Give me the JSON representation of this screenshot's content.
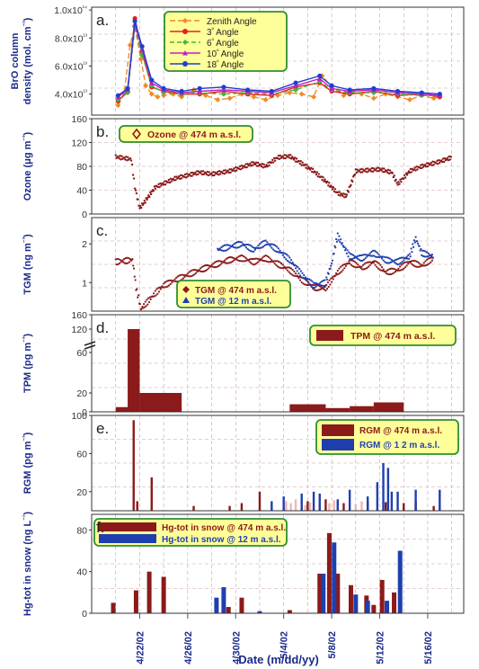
{
  "figure": {
    "x_axis_label": "Date (m/dd/yy)",
    "x_ticks": [
      "4/22/02",
      "4/26/02",
      "4/30/02",
      "5/4/02",
      "5/8/02",
      "5/12/02",
      "5/16/02"
    ],
    "colors": {
      "navy": "#1a2a8c",
      "maroon": "#8b1a1a",
      "blue": "#1f3fae",
      "legend_fill": "#ffff99",
      "legend_border": "#2f8f2f",
      "grid": "#c9a0a0"
    }
  },
  "chart_data": [
    {
      "panel": "a.",
      "type": "line",
      "ylabel": [
        "BrO column",
        "density (mol. cm⁻²)"
      ],
      "yticks": [
        "1.0x10¹⁴",
        "8.0x10¹³",
        "6.0x10¹³",
        "4.0x10¹³"
      ],
      "yunit": "10^13 mol cm^-2",
      "ylim": [
        2.5,
        10.2
      ],
      "legend": [
        "Zenith Angle",
        "3º Angle",
        "6º Angle",
        "10º Angle",
        "18º Angle"
      ],
      "series": [
        {
          "name": "Zenith Angle",
          "color": "#f08a24",
          "marker": "diamond",
          "dash": "6,3",
          "x": [
            19.2,
            19.7,
            20.2,
            20.6,
            21.1,
            21.5,
            22.0,
            22.5,
            23.0,
            23.8,
            24.5,
            25.5,
            26.5,
            27.5,
            28.5,
            29.5,
            30.5,
            31.5,
            32.5,
            33.5,
            34.5,
            35.5,
            36.2,
            37.0,
            38.0,
            38.5,
            39.5,
            40.5,
            41.5,
            42.5,
            43.5,
            44.5,
            45.5,
            46.0
          ],
          "y": [
            3.2,
            4.0,
            7.5,
            8.8,
            6.5,
            4.6,
            4.0,
            3.8,
            3.9,
            4.0,
            3.8,
            4.3,
            3.9,
            3.6,
            3.7,
            4.0,
            3.8,
            3.6,
            3.9,
            4.1,
            4.0,
            3.8,
            5.3,
            4.5,
            3.9,
            4.2,
            4.0,
            3.7,
            4.0,
            3.8,
            3.6,
            3.9,
            3.7,
            3.8
          ]
        },
        {
          "name": "3º Angle",
          "color": "#e82020",
          "marker": "circle",
          "dash": "",
          "x": [
            19.2,
            20.0,
            20.6,
            21.2,
            22.0,
            23.0,
            24.5,
            26.0,
            28.0,
            30.0,
            32.0,
            34.0,
            36.0,
            37.0,
            38.5,
            40.5,
            42.5,
            44.5,
            46.0
          ],
          "y": [
            3.5,
            4.2,
            9.4,
            7.0,
            4.5,
            4.2,
            4.0,
            4.0,
            4.2,
            4.0,
            3.9,
            4.5,
            4.8,
            4.2,
            4.0,
            4.2,
            3.9,
            4.0,
            3.8
          ]
        },
        {
          "name": "6º Angle",
          "color": "#3ab83a",
          "marker": "diamond",
          "dash": "5,3",
          "x": [
            19.2,
            20.0,
            20.6,
            21.2,
            22.0,
            23.0,
            24.5,
            26.0,
            28.0,
            30.0,
            32.0,
            34.0,
            36.0,
            37.0,
            38.5,
            40.5,
            42.5,
            44.5,
            46.0
          ],
          "y": [
            3.6,
            4.1,
            8.8,
            6.8,
            4.6,
            4.1,
            4.0,
            4.1,
            4.0,
            4.1,
            4.0,
            4.3,
            4.9,
            4.3,
            4.1,
            4.1,
            4.0,
            3.9,
            3.9
          ]
        },
        {
          "name": "10º Angle",
          "color": "#c020c0",
          "marker": "triangle",
          "dash": "",
          "x": [
            19.2,
            20.0,
            20.6,
            21.2,
            22.0,
            23.0,
            24.5,
            26.0,
            28.0,
            30.0,
            32.0,
            34.0,
            36.0,
            37.0,
            38.5,
            40.5,
            42.5,
            44.5,
            46.0
          ],
          "y": [
            3.8,
            4.3,
            9.0,
            7.2,
            4.8,
            4.3,
            4.1,
            4.2,
            4.3,
            4.2,
            4.1,
            4.6,
            5.1,
            4.4,
            4.2,
            4.3,
            4.1,
            4.0,
            3.9
          ]
        },
        {
          "name": "18º Angle",
          "color": "#1f3fcf",
          "marker": "circle",
          "dash": "",
          "x": [
            19.2,
            20.0,
            20.6,
            21.2,
            22.0,
            23.0,
            24.5,
            26.0,
            28.0,
            30.0,
            32.0,
            34.0,
            36.0,
            37.0,
            38.5,
            40.5,
            42.5,
            44.5,
            46.0
          ],
          "y": [
            3.9,
            4.4,
            9.2,
            7.4,
            5.0,
            4.4,
            4.2,
            4.4,
            4.5,
            4.3,
            4.2,
            4.8,
            5.3,
            4.6,
            4.3,
            4.4,
            4.2,
            4.1,
            4.0
          ]
        }
      ]
    },
    {
      "panel": "b.",
      "type": "scatter",
      "ylabel": [
        "Ozone (μg m⁻³)"
      ],
      "yticks": [
        "160",
        "120",
        "80",
        "40",
        "0"
      ],
      "ylim": [
        0,
        160
      ],
      "legend": [
        "Ozone @ 474 m a.s.l."
      ],
      "segments": [
        [
          19.0,
          96
        ],
        [
          20.3,
          92
        ],
        [
          20.6,
          45
        ],
        [
          21.0,
          10
        ],
        [
          21.4,
          20
        ],
        [
          22.3,
          45
        ],
        [
          24.0,
          60
        ],
        [
          26.0,
          70
        ],
        [
          27.0,
          67
        ],
        [
          28.5,
          72
        ],
        [
          30.5,
          85
        ],
        [
          31.5,
          80
        ],
        [
          32.5,
          95
        ],
        [
          33.5,
          97
        ],
        [
          34.5,
          85
        ],
        [
          35.5,
          72
        ],
        [
          36.5,
          55
        ],
        [
          37.5,
          35
        ],
        [
          38.2,
          30
        ],
        [
          38.6,
          50
        ],
        [
          39.0,
          72
        ],
        [
          41.0,
          75
        ],
        [
          42.0,
          70
        ],
        [
          42.5,
          50
        ],
        [
          43.5,
          72
        ],
        [
          44.5,
          80
        ],
        [
          46.0,
          88
        ],
        [
          47.0,
          95
        ]
      ]
    },
    {
      "panel": "c.",
      "type": "scatter",
      "ylabel": [
        "TGM (ng m⁻³)"
      ],
      "yticks": [
        "2",
        "1"
      ],
      "ylog": true,
      "ylim": [
        0.6,
        3.2
      ],
      "legend": [
        "TGM @ 474 m a.s.l.",
        "TGM @ 12 m a.s.l."
      ],
      "series": [
        {
          "name": "TGM @ 474 m a.s.l.",
          "color": "#8b1a1a",
          "points": [
            [
              19.0,
              1.45
            ],
            [
              20.4,
              1.5
            ],
            [
              20.7,
              0.9
            ],
            [
              21.1,
              0.62
            ],
            [
              21.6,
              0.7
            ],
            [
              23.0,
              0.95
            ],
            [
              24.5,
              1.1
            ],
            [
              26.0,
              1.25
            ],
            [
              27.5,
              1.4
            ],
            [
              28.5,
              1.5
            ],
            [
              29.5,
              1.55
            ],
            [
              30.5,
              1.45
            ],
            [
              31.5,
              1.55
            ],
            [
              32.5,
              1.4
            ],
            [
              33.5,
              1.25
            ],
            [
              34.5,
              1.05
            ],
            [
              35.5,
              0.92
            ],
            [
              36.5,
              0.9
            ],
            [
              37.5,
              1.2
            ],
            [
              38.5,
              1.45
            ],
            [
              39.5,
              1.3
            ],
            [
              40.5,
              1.45
            ],
            [
              41.5,
              1.2
            ],
            [
              42.5,
              1.25
            ],
            [
              43.5,
              1.45
            ],
            [
              44.5,
              1.35
            ],
            [
              45.5,
              1.55
            ]
          ]
        },
        {
          "name": "TGM @ 12 m a.s.l.",
          "color": "#1f3fae",
          "points": [
            [
              27.5,
              1.8
            ],
            [
              28.5,
              1.9
            ],
            [
              29.5,
              2.0
            ],
            [
              30.5,
              1.8
            ],
            [
              31.5,
              2.05
            ],
            [
              32.5,
              1.8
            ],
            [
              33.5,
              1.5
            ],
            [
              34.5,
              1.15
            ],
            [
              35.5,
              0.95
            ],
            [
              36.5,
              1.0
            ],
            [
              37.0,
              1.4
            ],
            [
              37.5,
              2.3
            ],
            [
              38.0,
              1.9
            ],
            [
              38.5,
              1.6
            ],
            [
              39.5,
              1.55
            ],
            [
              40.5,
              1.7
            ],
            [
              41.5,
              1.5
            ],
            [
              42.5,
              1.45
            ],
            [
              43.5,
              1.6
            ],
            [
              44.0,
              2.2
            ],
            [
              44.5,
              1.7
            ],
            [
              45.5,
              1.6
            ]
          ]
        }
      ]
    },
    {
      "panel": "d.",
      "type": "bar",
      "ylabel": [
        "TPM (pg m⁻³)"
      ],
      "yticks": [
        "160",
        "120",
        "60",
        "20",
        "0"
      ],
      "legend": [
        "TPM @ 474 m a.s.l."
      ],
      "bars": [
        [
          19.0,
          20.0,
          5
        ],
        [
          20.0,
          21.0,
          120
        ],
        [
          21.0,
          24.5,
          20
        ],
        [
          33.5,
          36.5,
          8
        ],
        [
          36.5,
          38.5,
          4
        ],
        [
          38.5,
          40.5,
          6
        ],
        [
          40.5,
          43.0,
          10
        ]
      ]
    },
    {
      "panel": "e.",
      "type": "bar",
      "ylabel": [
        "RGM (pg m⁻³)"
      ],
      "yticks": [
        "100",
        "60",
        "20"
      ],
      "ylim": [
        0,
        100
      ],
      "legend": [
        "RGM @ 474 m a.s.l.",
        "RGM @ 1 2 m a.s.l."
      ],
      "series": [
        {
          "name": "RGM @ 474 m a.s.l.",
          "color": "#8b1a1a",
          "bars": [
            [
              20.5,
              95
            ],
            [
              20.8,
              10
            ],
            [
              22.0,
              35
            ],
            [
              25.5,
              5
            ],
            [
              28.5,
              5
            ],
            [
              29.5,
              8
            ],
            [
              31.0,
              20
            ],
            [
              35.0,
              10
            ],
            [
              36.5,
              12
            ],
            [
              38.0,
              8
            ],
            [
              40.0,
              10
            ],
            [
              41.5,
              9
            ],
            [
              43.0,
              8
            ],
            [
              44.0,
              10
            ],
            [
              45.5,
              5
            ]
          ]
        },
        {
          "name": "RGM @ 1 2 m a.s.l.",
          "color": "#1f3fae",
          "bars": [
            [
              32.0,
              10
            ],
            [
              33.0,
              15
            ],
            [
              34.5,
              18
            ],
            [
              35.5,
              20
            ],
            [
              36.0,
              18
            ],
            [
              37.5,
              12
            ],
            [
              38.5,
              22
            ],
            [
              40.0,
              15
            ],
            [
              40.8,
              30
            ],
            [
              41.3,
              50
            ],
            [
              41.7,
              45
            ],
            [
              42.0,
              20
            ],
            [
              42.5,
              20
            ],
            [
              44.0,
              22
            ],
            [
              46.0,
              22
            ]
          ]
        },
        {
          "name": "",
          "color": "#f2b6b6",
          "bars": [
            [
              33.2,
              10
            ],
            [
              33.6,
              8
            ],
            [
              34.0,
              12
            ],
            [
              34.8,
              6
            ],
            [
              35.2,
              9
            ],
            [
              36.8,
              8
            ],
            [
              37.2,
              11
            ],
            [
              39.0,
              7
            ],
            [
              39.5,
              10
            ]
          ]
        }
      ]
    },
    {
      "panel": "f.",
      "type": "bar",
      "ylabel": [
        "Hg-tot in snow (ng L⁻¹)"
      ],
      "yticks": [
        "80",
        "40",
        "0"
      ],
      "ylim": [
        0,
        95
      ],
      "legend": [
        "Hg-tot in snow @ 474 m a.s.l.",
        "Hg-tot in snow @ 12 m a.s.l."
      ],
      "series": [
        {
          "name": "Hg-tot in snow @ 474 m a.s.l.",
          "color": "#8b1a1a",
          "bars": [
            [
              18.8,
              10
            ],
            [
              20.7,
              22
            ],
            [
              21.8,
              40
            ],
            [
              23.0,
              35
            ],
            [
              28.4,
              6
            ],
            [
              29.5,
              15
            ],
            [
              33.5,
              3
            ],
            [
              36.0,
              38
            ],
            [
              36.8,
              77
            ],
            [
              37.5,
              38
            ],
            [
              38.6,
              27
            ],
            [
              39.9,
              17
            ],
            [
              40.5,
              8
            ],
            [
              41.2,
              32
            ],
            [
              42.2,
              20
            ]
          ]
        },
        {
          "name": "Hg-tot in snow @ 12 m a.s.l.",
          "color": "#1f3fae",
          "bars": [
            [
              27.4,
              15
            ],
            [
              28.0,
              25
            ],
            [
              31.0,
              2
            ],
            [
              36.3,
              38
            ],
            [
              37.2,
              68
            ],
            [
              39.0,
              18
            ],
            [
              40.0,
              12
            ],
            [
              41.6,
              12
            ],
            [
              42.7,
              60
            ]
          ]
        }
      ]
    }
  ]
}
